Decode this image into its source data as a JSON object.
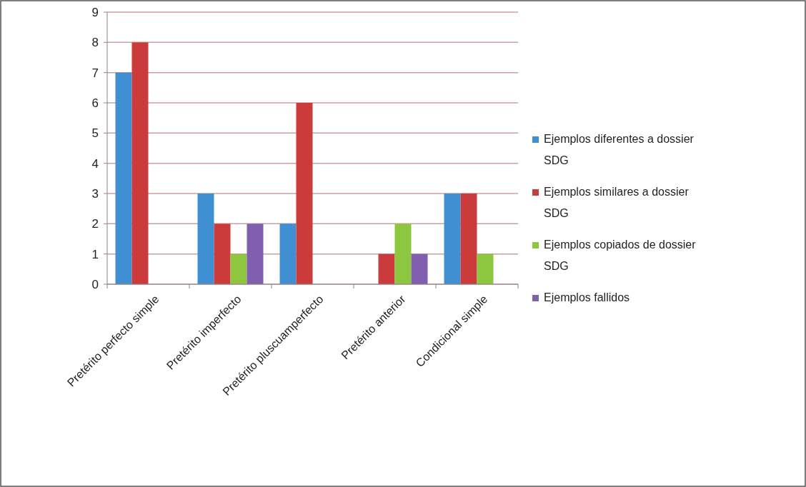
{
  "chart_data": {
    "type": "bar",
    "categories": [
      "Pretérito perfecto simple",
      "Pretérito imperfecto",
      "Pretérito pluscuamperfecto",
      "Pretérito anterior",
      "Condicional simple"
    ],
    "series": [
      {
        "name": "Ejemplos diferentes a dossier SDG",
        "color": "#3f8fd2",
        "values": [
          7,
          3,
          2,
          0,
          3
        ]
      },
      {
        "name": "Ejemplos similares a dossier SDG",
        "color": "#cc3b3b",
        "values": [
          8,
          2,
          6,
          1,
          3
        ]
      },
      {
        "name": "Ejemplos copiados de dossier SDG",
        "color": "#8dc63f",
        "values": [
          0,
          1,
          0,
          2,
          1
        ]
      },
      {
        "name": "Ejemplos fallidos",
        "color": "#7f5fae",
        "values": [
          0,
          2,
          0,
          1,
          0
        ]
      }
    ],
    "ylim": [
      0,
      9
    ],
    "yticks": [
      0,
      1,
      2,
      3,
      4,
      5,
      6,
      7,
      8,
      9
    ],
    "grid": "y",
    "legend": "right"
  }
}
